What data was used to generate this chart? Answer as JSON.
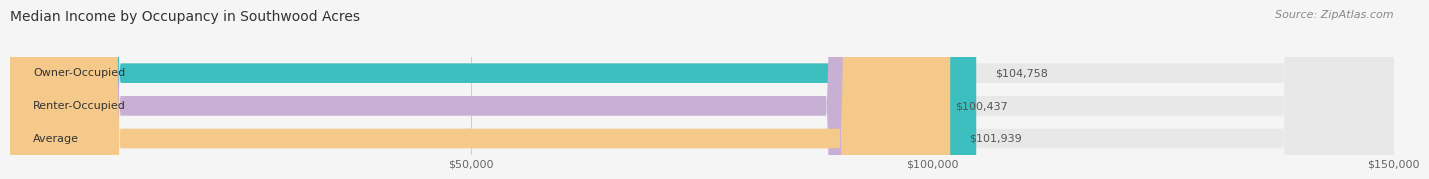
{
  "title": "Median Income by Occupancy in Southwood Acres",
  "source": "Source: ZipAtlas.com",
  "categories": [
    "Owner-Occupied",
    "Renter-Occupied",
    "Average"
  ],
  "values": [
    104758,
    100437,
    101939
  ],
  "bar_colors": [
    "#3dbfbf",
    "#c8afd4",
    "#f5c98a"
  ],
  "bar_bg_color": "#e8e8e8",
  "xlim": [
    0,
    150000
  ],
  "xticks": [
    0,
    50000,
    100000,
    150000
  ],
  "xtick_labels": [
    "",
    "$50,000",
    "$100,000",
    "$150,000"
  ],
  "value_labels": [
    "$104,758",
    "$100,437",
    "$101,939"
  ],
  "title_fontsize": 10,
  "source_fontsize": 8,
  "label_fontsize": 8,
  "value_fontsize": 8,
  "figure_bg": "#f5f5f5"
}
